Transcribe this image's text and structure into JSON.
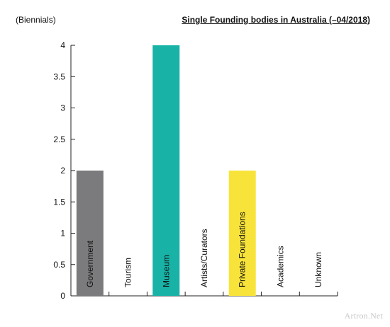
{
  "header": {
    "unit_label": "(Biennials)",
    "title": "Single Founding bodies in Australia  (–04/2018)"
  },
  "watermark": "Artron.Net",
  "chart_data": {
    "type": "bar",
    "title": "Single Founding bodies in Australia  (–04/2018)",
    "ylabel": "(Biennials)",
    "xlabel": "",
    "categories": [
      "Government",
      "Tourism",
      "Museum",
      "Artists/Curators",
      "Private Foundations",
      "Academics",
      "Unknown"
    ],
    "values": [
      2,
      0,
      4,
      0,
      2,
      0,
      0
    ],
    "colors": [
      "#7b7b7d",
      "#ffffff",
      "#18b3a6",
      "#ffffff",
      "#f8e33a",
      "#ffffff",
      "#ffffff"
    ],
    "ylim": [
      0,
      4
    ],
    "yticks": [
      "0",
      "0.5",
      "1",
      "1.5",
      "2",
      "2.5",
      "3",
      "3.5",
      "4"
    ],
    "grid": false,
    "legend": "none"
  }
}
